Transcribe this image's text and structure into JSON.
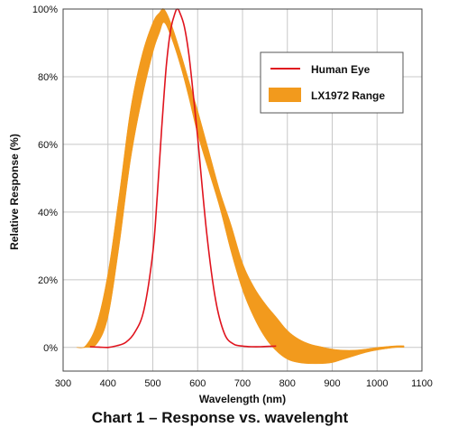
{
  "caption": "Chart 1 – Response vs. wavelenght",
  "chart_data": {
    "type": "line",
    "xlabel": "Wavelength (nm)",
    "ylabel": "Relative Response (%)",
    "xlim": [
      300,
      1100
    ],
    "ylim": [
      -7,
      100
    ],
    "x_ticks": [
      300,
      400,
      500,
      600,
      700,
      800,
      900,
      1000,
      1100
    ],
    "x_tick_labels": [
      "300",
      "400",
      "500",
      "600",
      "700",
      "800",
      "900",
      "1000",
      "1100"
    ],
    "y_ticks": [
      0,
      20,
      40,
      60,
      80,
      100
    ],
    "y_tick_labels": [
      "0%",
      "20%",
      "40%",
      "60%",
      "80%",
      "100%"
    ],
    "grid": true,
    "legend_placement": "top-right",
    "colors": {
      "human_eye": "#e0141e",
      "lx1972": "#f29a1d",
      "grid": "#c8c8c8"
    },
    "series": [
      {
        "name": "Human Eye",
        "kind": "line",
        "x": [
          360,
          380,
          400,
          420,
          440,
          460,
          480,
          500,
          510,
          520,
          530,
          540,
          550,
          555,
          560,
          570,
          580,
          590,
          600,
          620,
          640,
          660,
          680,
          700,
          720,
          740,
          760,
          775
        ],
        "y": [
          0.2,
          0.1,
          0.0,
          0.5,
          1.5,
          4.5,
          11,
          28,
          45,
          65,
          83,
          94,
          99,
          100,
          99,
          95,
          87,
          75,
          62,
          34,
          14,
          4,
          1,
          0.4,
          0.2,
          0.2,
          0.3,
          0.4
        ]
      },
      {
        "name": "LX1972 Range",
        "kind": "band",
        "x": [
          330,
          350,
          375,
          400,
          425,
          450,
          475,
          500,
          515,
          525,
          540,
          560,
          580,
          600,
          625,
          650,
          675,
          700,
          725,
          750,
          775,
          800,
          825,
          850,
          875,
          900,
          925,
          950,
          975,
          1000,
          1025,
          1045,
          1060
        ],
        "upper": [
          0,
          0.5,
          7,
          22,
          45,
          70,
          86,
          96,
          99,
          100,
          96,
          88,
          79,
          70,
          58,
          46,
          36,
          25,
          18,
          13,
          9,
          5,
          2.5,
          1,
          0.2,
          -0.5,
          -0.8,
          -0.8,
          -0.5,
          0,
          0.3,
          0.5,
          0.5
        ],
        "lower": [
          0,
          0,
          1,
          9,
          30,
          55,
          73,
          87,
          93,
          96,
          92,
          84,
          74,
          63,
          52,
          41,
          28,
          17,
          9,
          3,
          -1,
          -3.5,
          -4.5,
          -4.8,
          -4.8,
          -4.5,
          -3.5,
          -2.5,
          -1.5,
          -0.8,
          -0.3,
          0,
          0
        ]
      }
    ]
  }
}
